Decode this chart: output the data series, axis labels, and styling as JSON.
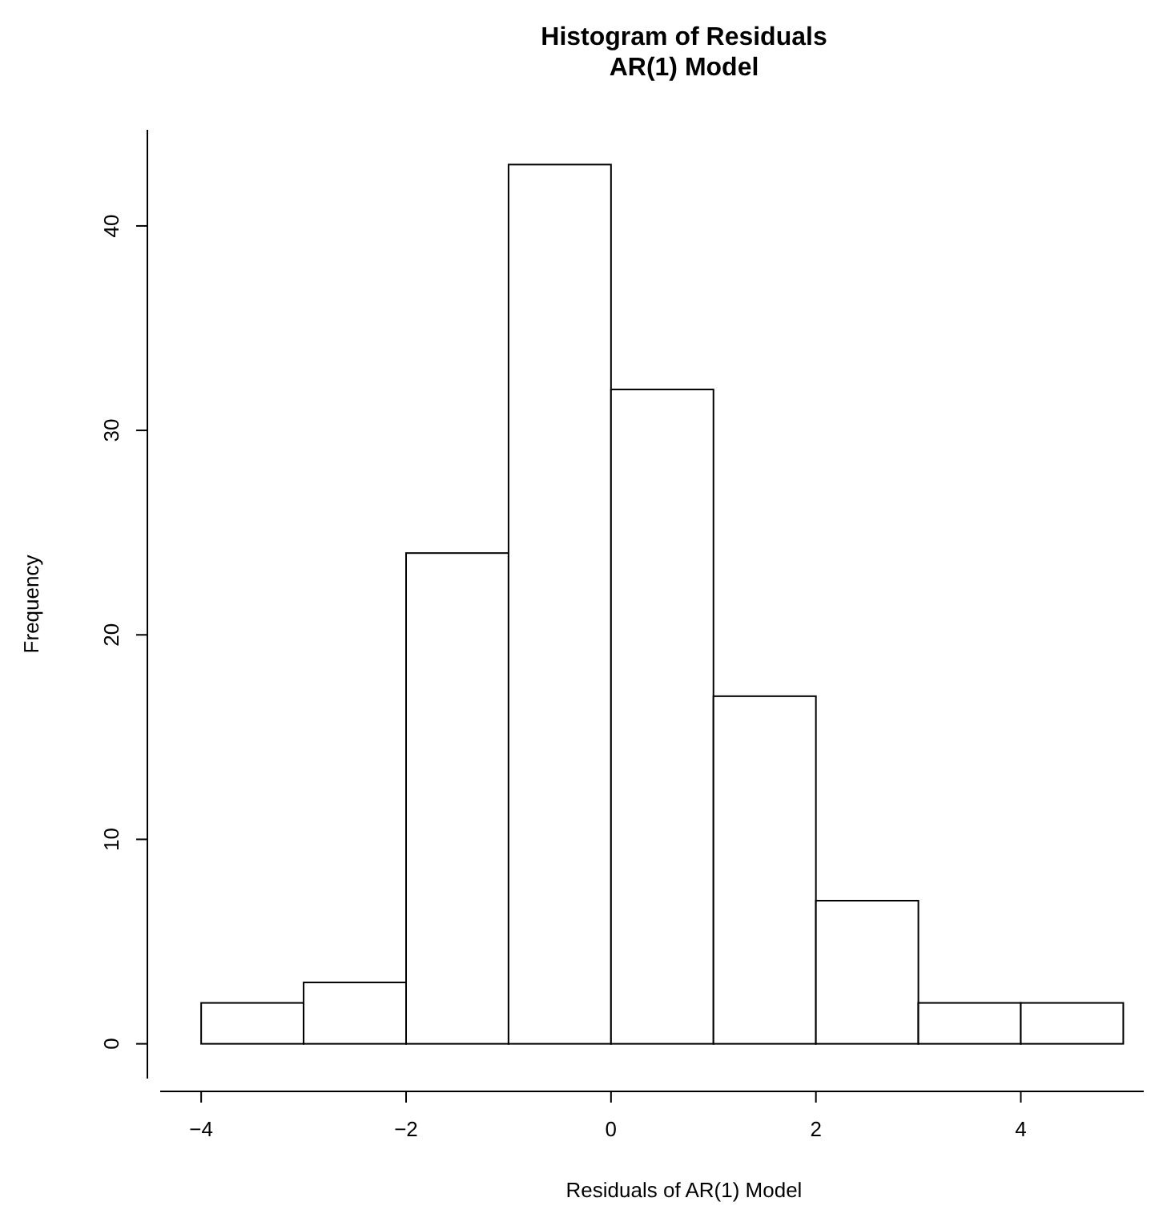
{
  "chart_data": {
    "type": "histogram",
    "title": "Histogram of Residuals",
    "subtitle": "AR(1) Model",
    "xlabel": "Residuals of AR(1) Model",
    "ylabel": "Frequency",
    "bins": [
      -4,
      -3,
      -2,
      -1,
      0,
      1,
      2,
      3,
      4,
      5
    ],
    "values": [
      2,
      3,
      24,
      43,
      32,
      17,
      7,
      2,
      2
    ],
    "color": "#ffffff",
    "xlim": [
      -4.4,
      5.2
    ],
    "xticks": [
      -4,
      -2,
      0,
      2,
      4
    ],
    "ylim": [
      -1.7,
      44.7
    ],
    "yticks": [
      0,
      10,
      20,
      30,
      40
    ],
    "grid": false
  }
}
